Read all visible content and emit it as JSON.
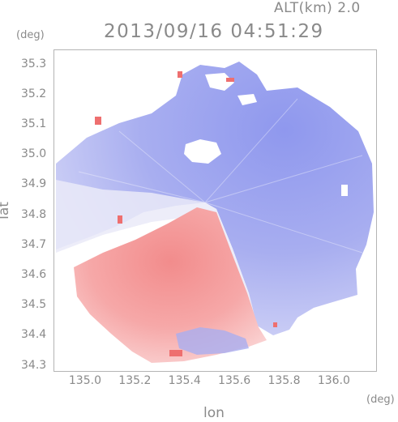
{
  "header": {
    "altitude_label": "ALT(km) 2.0",
    "timestamp": "2013/09/16 04:51:29"
  },
  "chart_data": {
    "type": "heatmap",
    "title": "2013/09/16 04:51:29",
    "subtitle": "ALT(km) 2.0",
    "xlabel": "lon",
    "ylabel": "lat",
    "x_unit": "(deg)",
    "y_unit": "(deg)",
    "xlim": [
      134.87,
      136.17
    ],
    "ylim": [
      34.28,
      35.35
    ],
    "x_ticks": [
      135.0,
      135.2,
      135.4,
      135.6,
      135.8,
      136.0
    ],
    "x_tick_labels": [
      "135.0",
      "135.2",
      "135.4",
      "135.6",
      "135.8",
      "136.0"
    ],
    "y_ticks": [
      34.3,
      34.4,
      34.5,
      34.6,
      34.7,
      34.8,
      34.9,
      35.0,
      35.1,
      35.2,
      35.3
    ],
    "y_tick_labels": [
      "34.3",
      "34.4",
      "34.5",
      "34.6",
      "34.7",
      "34.8",
      "34.9",
      "35.0",
      "35.1",
      "35.2",
      "35.3"
    ],
    "grid": false,
    "colors": {
      "positive": "#f08a8a",
      "negative": "#8a93ec",
      "neutral": "#f4f4fb"
    }
  }
}
